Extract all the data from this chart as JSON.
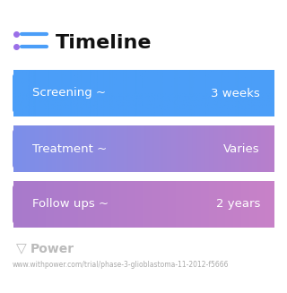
{
  "title": "Timeline",
  "title_icon_color_dot": "#9B6FE8",
  "title_icon_color_line": "#4B9EF8",
  "title_fontsize": 16,
  "background_color": "#ffffff",
  "cards": [
    {
      "label": "Screening ~",
      "value": "3 weeks",
      "color_left": "#4B9EF8",
      "color_right": "#4B9EF8"
    },
    {
      "label": "Treatment ~",
      "value": "Varies",
      "color_left": "#7B8FE8",
      "color_right": "#B87FCC"
    },
    {
      "label": "Follow ups ~",
      "value": "2 years",
      "color_left": "#A87ACC",
      "color_right": "#C882C8"
    }
  ],
  "footer_logo_text": "Power",
  "footer_url": "www.withpower.com/trial/phase-3-glioblastoma-11-2012-f5666",
  "card_text_color": "#ffffff",
  "card_text_fontsize": 9.5
}
